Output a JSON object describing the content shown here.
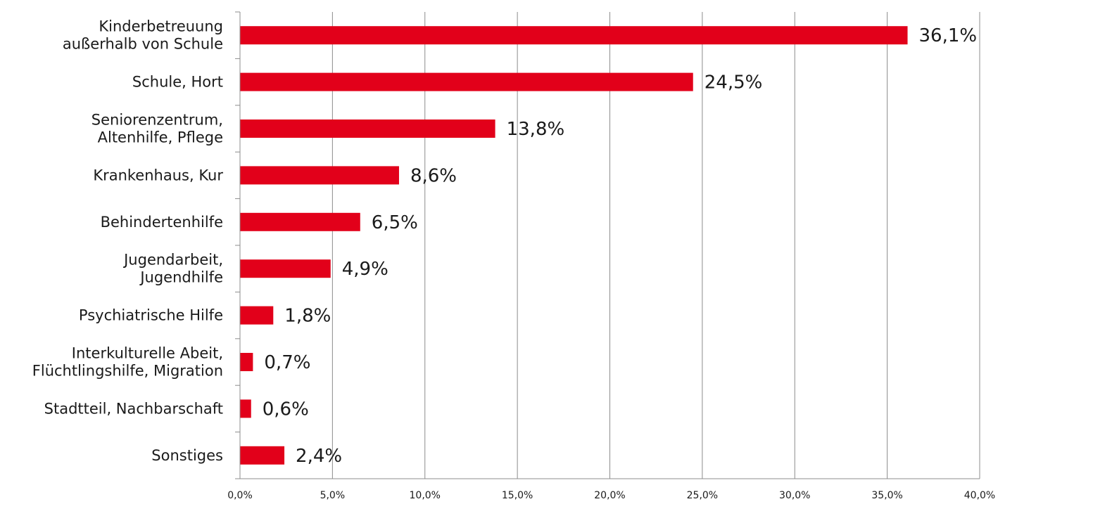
{
  "chart_data": {
    "type": "bar",
    "orientation": "horizontal",
    "categories": [
      [
        "Kinderbetreuung",
        "außerhalb von Schule"
      ],
      [
        "Schule, Hort"
      ],
      [
        "Seniorenzentrum,",
        "Altenhilfe, Pflege"
      ],
      [
        "Krankenhaus, Kur"
      ],
      [
        "Behindertenhilfe"
      ],
      [
        "Jugendarbeit,",
        "Jugendhilfe"
      ],
      [
        "Psychiatrische Hilfe"
      ],
      [
        "Interkulturelle Abeit,",
        "Flüchtlingshilfe, Migration"
      ],
      [
        "Stadtteil, Nachbarschaft"
      ],
      [
        "Sonstiges"
      ]
    ],
    "values": [
      36.1,
      24.5,
      13.8,
      8.6,
      6.5,
      4.9,
      1.8,
      0.7,
      0.6,
      2.4
    ],
    "value_labels": [
      "36,1%",
      "24,5%",
      "13,8%",
      "8,6%",
      "6,5%",
      "4,9%",
      "1,8%",
      "0,7%",
      "0,6%",
      "2,4%"
    ],
    "xlim": [
      0,
      40
    ],
    "x_ticks": [
      0,
      5,
      10,
      15,
      20,
      25,
      30,
      35,
      40
    ],
    "x_tick_labels": [
      "0,0%",
      "5,0%",
      "10,0%",
      "15,0%",
      "20,0%",
      "25,0%",
      "30,0%",
      "35,0%",
      "40,0%"
    ],
    "title": "",
    "xlabel": "",
    "ylabel": "",
    "grid": "vertical",
    "legend": "none",
    "bar_color": "#e2001a",
    "grid_color": "#8c8c8c",
    "axis_color": "#8c8c8c",
    "text_color": "#1a1a1a"
  }
}
